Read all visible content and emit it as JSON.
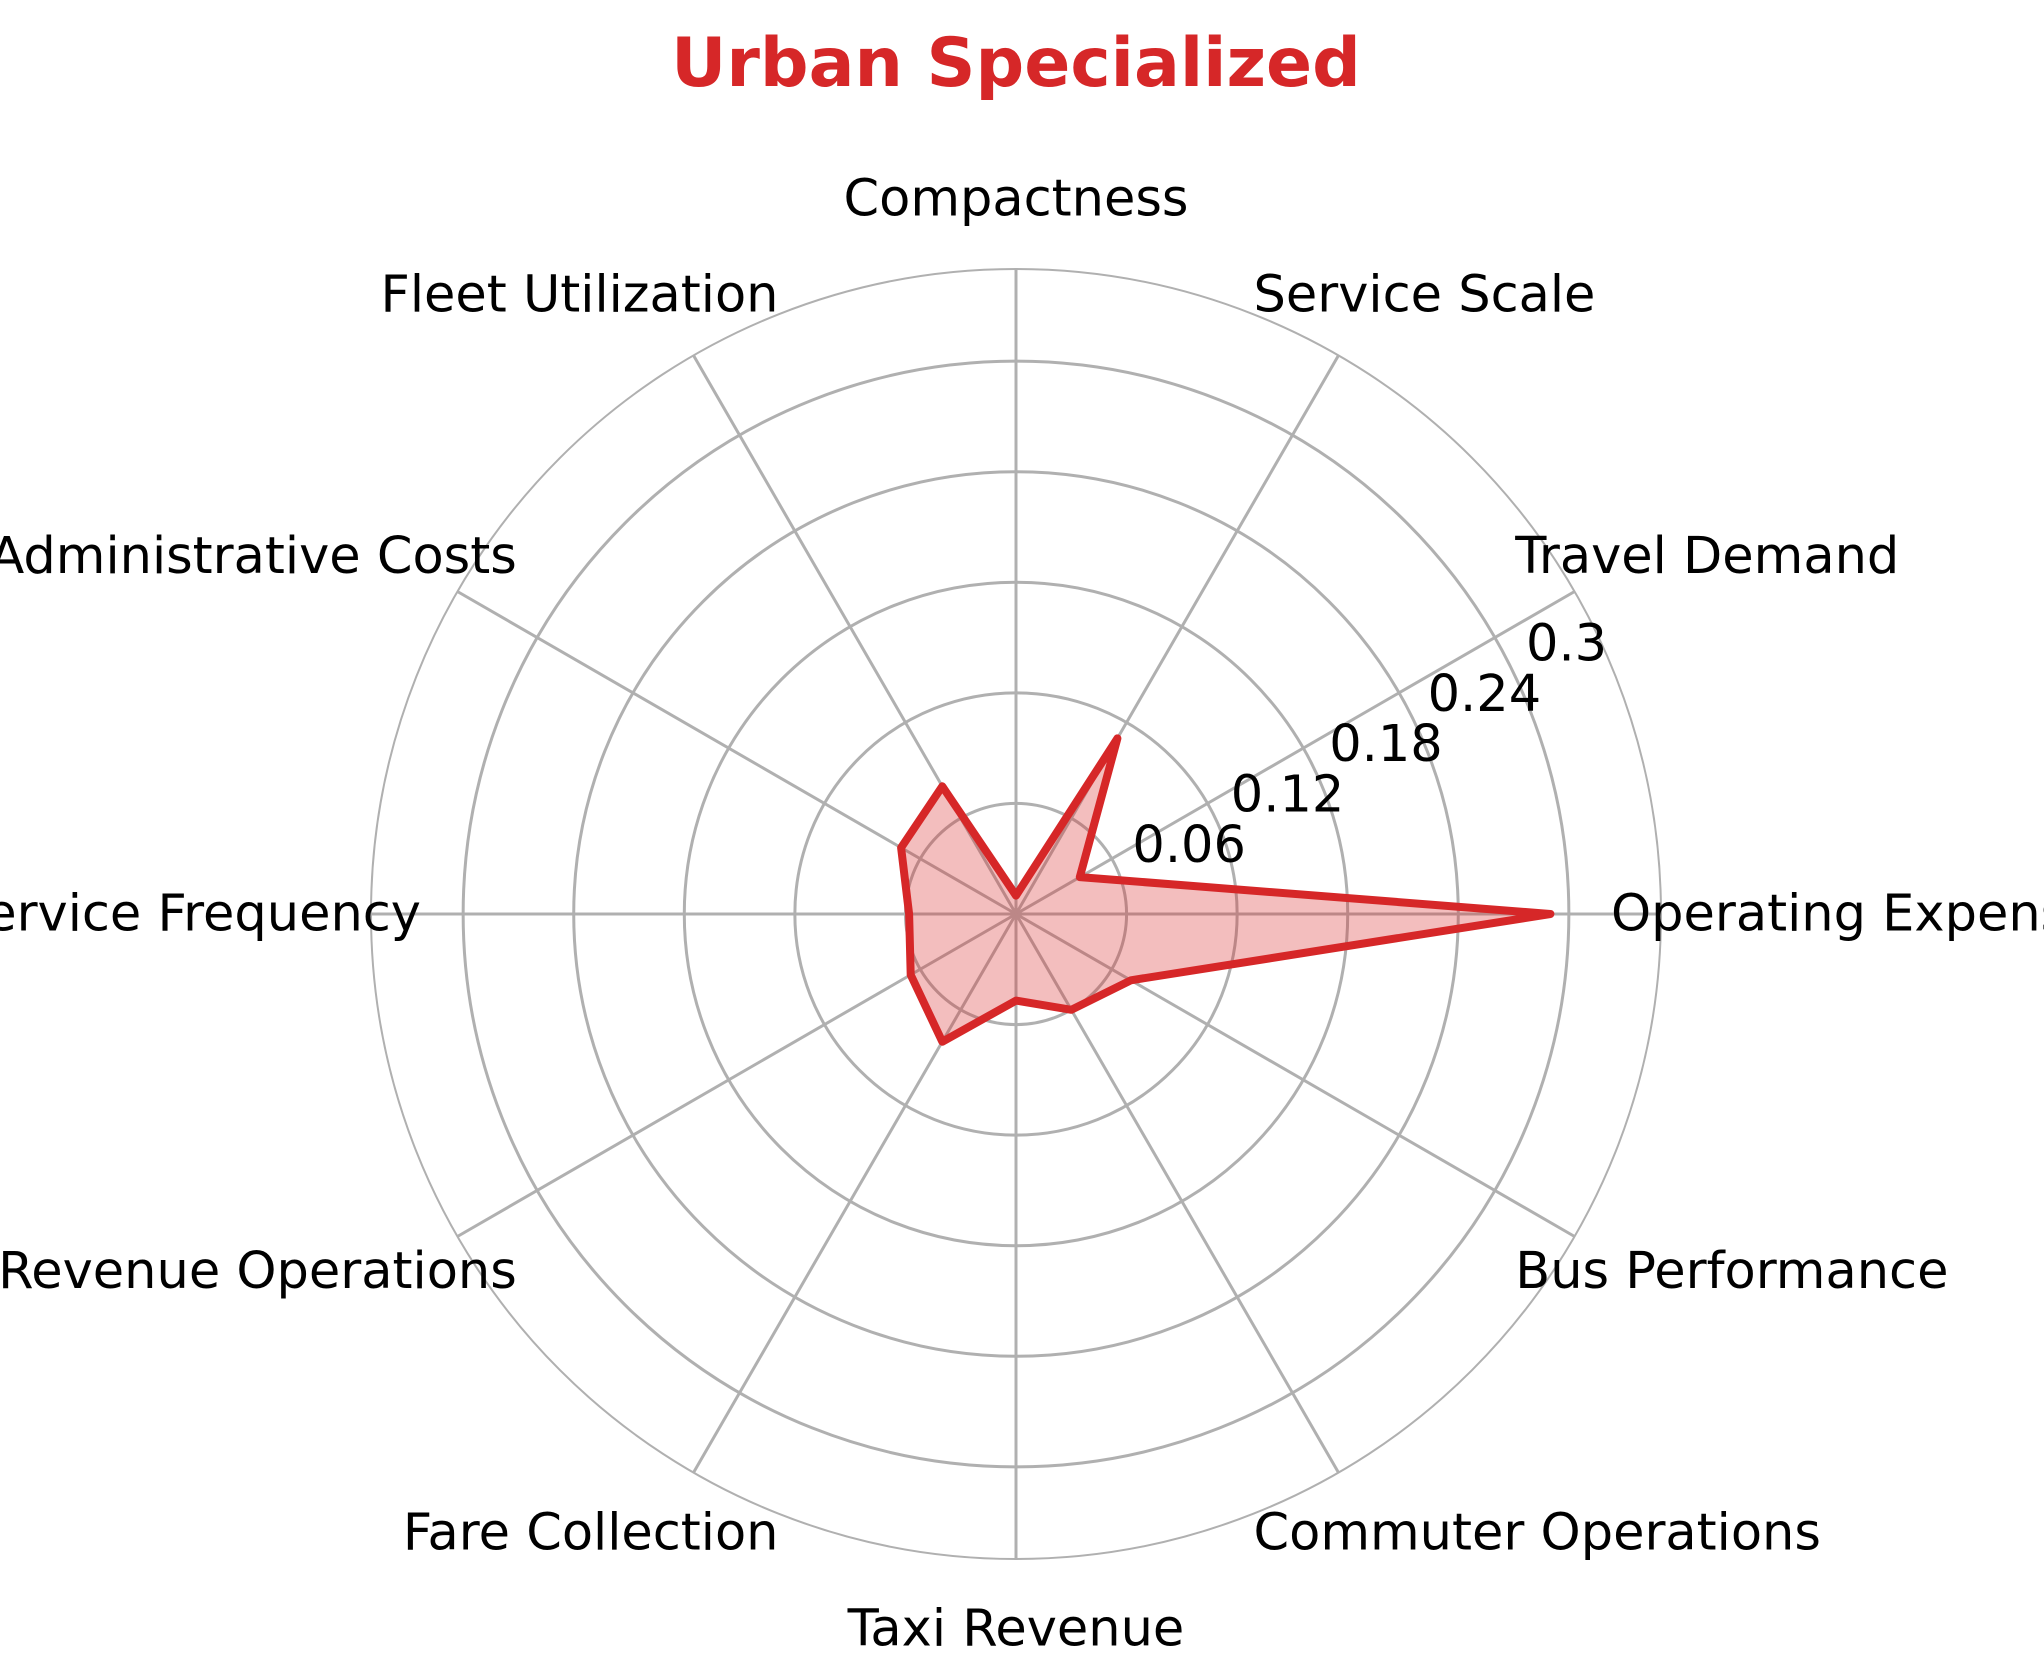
{
  "chart_data": {
    "type": "radar",
    "title": "Urban Specialized",
    "categories": [
      "Operating Expenses",
      "Travel Demand",
      "Service Scale",
      "Compactness",
      "Fleet Utilization",
      "Administrative Costs",
      "Service Frequency",
      "Revenue Operations",
      "Fare Collection",
      "Taxi Revenue",
      "Commuter Operations",
      "Bus Performance"
    ],
    "series": [
      {
        "values": [
          0.29,
          0.04,
          0.11,
          0.01,
          0.08,
          0.072,
          0.058,
          0.066,
          0.08,
          0.047,
          0.06,
          0.072
        ],
        "color": "#d62728"
      }
    ],
    "rlim": [
      0,
      0.35
    ],
    "rticks": [
      0.06,
      0.12,
      0.18,
      0.24,
      0.3
    ],
    "rtick_labels": [
      "0.06",
      "0.12",
      "0.18",
      "0.24",
      "0.3"
    ],
    "grid": true,
    "title_color": "#d62728",
    "fill_color": "#d62728"
  }
}
